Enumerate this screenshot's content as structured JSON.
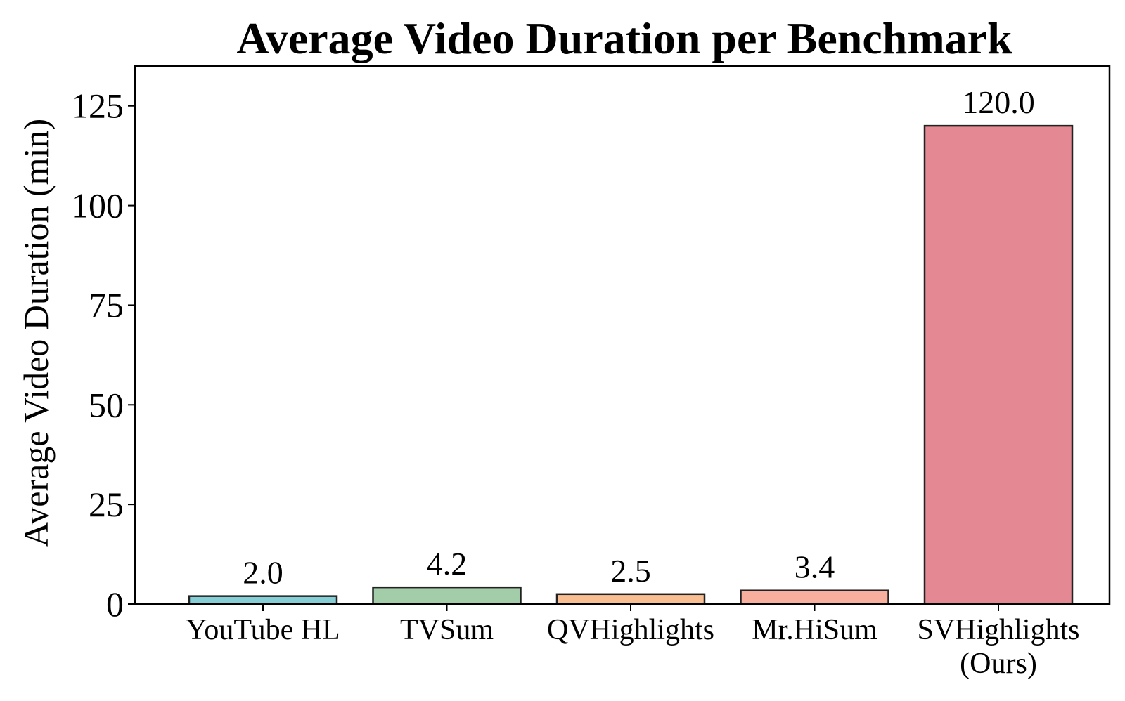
{
  "chart_data": {
    "type": "bar",
    "title": "Average Video Duration per Benchmark",
    "xlabel": "",
    "ylabel": "Average Video Duration (min)",
    "ylim": [
      0,
      135
    ],
    "yticks": [
      "0",
      "25",
      "50",
      "75",
      "100",
      "125"
    ],
    "categories": [
      [
        "YouTube HL"
      ],
      [
        "TVSum"
      ],
      [
        "QVHighlights"
      ],
      [
        "Mr.HiSum"
      ],
      [
        "SVHighlights",
        "(Ours)"
      ]
    ],
    "values": [
      2.0,
      4.2,
      2.5,
      3.4,
      120.0
    ],
    "value_labels": [
      "2.0",
      "4.2",
      "2.5",
      "3.4",
      "120.0"
    ],
    "colors": [
      "#86CED6",
      "#A3CCA8",
      "#F9BE92",
      "#F8AF9D",
      "#E48993"
    ],
    "edge_color": "#222222",
    "grid": false,
    "legend": "none"
  }
}
